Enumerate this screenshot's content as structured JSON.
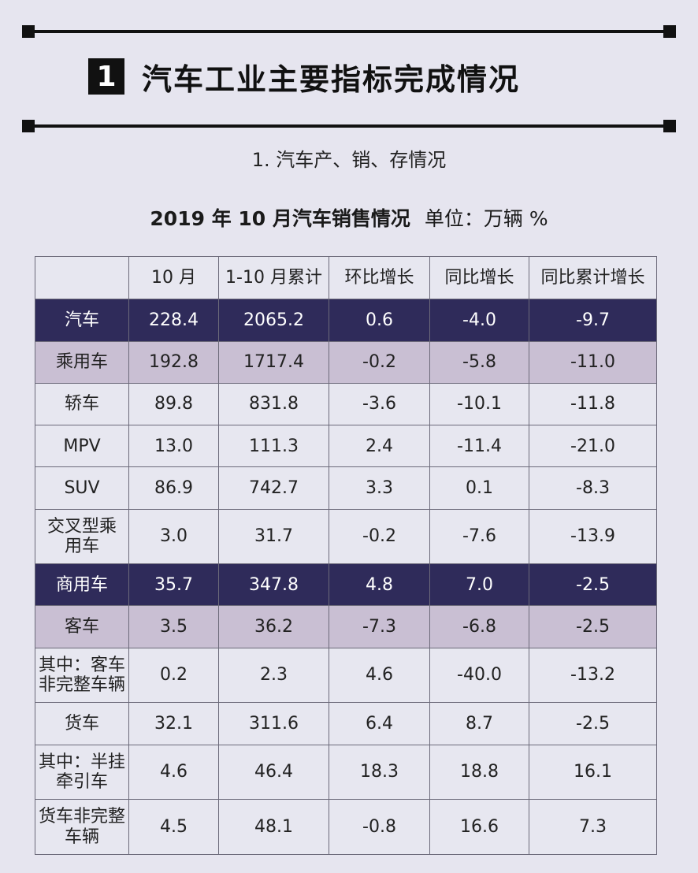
{
  "heading": {
    "number": "1",
    "title": "汽车工业主要指标完成情况"
  },
  "subtitle": "1. 汽车产、销、存情况",
  "table_title": {
    "title": "2019 年 10 月汽车销售情况",
    "unit": "单位：万辆 %"
  },
  "columns": [
    "",
    "10 月",
    "1-10 月累计",
    "环比增长",
    "同比增长",
    "同比累计增长"
  ],
  "rows": [
    {
      "name": "汽车",
      "oct": "228.4",
      "ytd": "2065.2",
      "mom": "0.6",
      "yoy": "-4.0",
      "yoy_ytd": "-9.7"
    },
    {
      "name": "乘用车",
      "oct": "192.8",
      "ytd": "1717.4",
      "mom": "-0.2",
      "yoy": "-5.8",
      "yoy_ytd": "-11.0"
    },
    {
      "name": "轿车",
      "oct": "89.8",
      "ytd": "831.8",
      "mom": "-3.6",
      "yoy": "-10.1",
      "yoy_ytd": "-11.8"
    },
    {
      "name": "MPV",
      "oct": "13.0",
      "ytd": "111.3",
      "mom": "2.4",
      "yoy": "-11.4",
      "yoy_ytd": "-21.0"
    },
    {
      "name": "SUV",
      "oct": "86.9",
      "ytd": "742.7",
      "mom": "3.3",
      "yoy": "0.1",
      "yoy_ytd": "-8.3"
    },
    {
      "name_line1": "交叉型乘",
      "name_line2": "用车",
      "oct": "3.0",
      "ytd": "31.7",
      "mom": "-0.2",
      "yoy": "-7.6",
      "yoy_ytd": "-13.9"
    },
    {
      "name": "商用车",
      "oct": "35.7",
      "ytd": "347.8",
      "mom": "4.8",
      "yoy": "7.0",
      "yoy_ytd": "-2.5"
    },
    {
      "name": "客车",
      "oct": "3.5",
      "ytd": "36.2",
      "mom": "-7.3",
      "yoy": "-6.8",
      "yoy_ytd": "-2.5"
    },
    {
      "name_line1": "其中：客车",
      "name_line2": "非完整车辆",
      "oct": "0.2",
      "ytd": "2.3",
      "mom": "4.6",
      "yoy": "-40.0",
      "yoy_ytd": "-13.2"
    },
    {
      "name": "货车",
      "oct": "32.1",
      "ytd": "311.6",
      "mom": "6.4",
      "yoy": "8.7",
      "yoy_ytd": "-2.5"
    },
    {
      "name_line1": "其中：半挂",
      "name_line2": "牵引车",
      "oct": "4.6",
      "ytd": "46.4",
      "mom": "18.3",
      "yoy": "18.8",
      "yoy_ytd": "16.1"
    },
    {
      "name_line1": "货车非完整",
      "name_line2": "车辆",
      "oct": "4.5",
      "ytd": "48.1",
      "mom": "-0.8",
      "yoy": "16.6",
      "yoy_ytd": "7.3"
    }
  ],
  "colors": {
    "background": "#e6e5ef",
    "dark_row": "#2f2b5a",
    "light_row": "#c9bfd3",
    "cell": "#e7e7f0"
  }
}
